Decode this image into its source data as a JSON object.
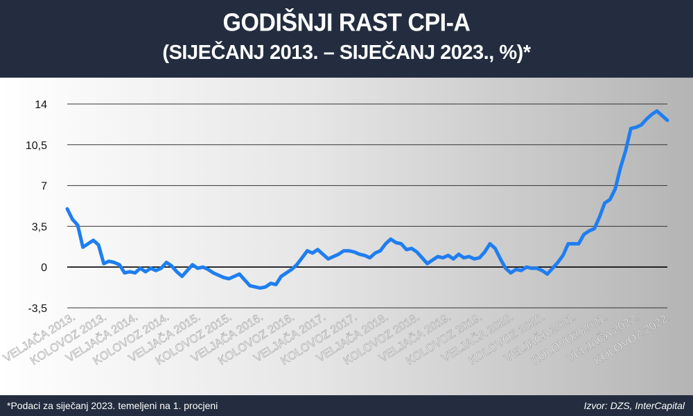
{
  "header": {
    "title": "GODIŠNJI RAST CPI-A",
    "subtitle": "(SIJEČANJ 2013. – SIJEČANJ 2023., %)*"
  },
  "footer": {
    "note": "*Podaci za siječanj 2023. temeljeni na 1. procjeni",
    "source": "Izvor: DZS, InterCapital"
  },
  "colors": {
    "line": "#1f7ef0",
    "header_bg": "#232d3f",
    "gridline": "#333333"
  },
  "chart_data": {
    "type": "line",
    "title": "GODIŠNJI RAST CPI-A",
    "subtitle": "(SIJEČANJ 2013. – SIJEČANJ 2023., %)*",
    "ylim": [
      -3.5,
      14
    ],
    "yticks": [
      -3.5,
      0,
      3.5,
      7,
      10.5,
      14
    ],
    "ytick_labels": [
      "-3,5",
      "0",
      "3,5",
      "7",
      "10,5",
      "14"
    ],
    "x_start": "2013-01",
    "xtick_labels": [
      "VELJAČA 2013.",
      "KOLOVOZ 2013.",
      "VELJAČA 2014.",
      "KOLOVOZ 2014.",
      "VELJAČA 2015.",
      "KOLOVOZ 2015.",
      "VELJAČA 2016.",
      "KOLOVOZ 2016.",
      "VELJAČA 2017.",
      "KOLOVOZ 2017.",
      "VELJAČA 2018.",
      "KOLOVOZ 2018.",
      "VELJAČA 2019.",
      "KOLOVOZ 2019.",
      "VELJAČA 2020.",
      "KOLOVOZ 2020.",
      "VELJAČA 2021.",
      "KOLOVOZ 2021.",
      "VELJAČA 2022.",
      "KOLOVOZ 2022."
    ],
    "legend": "none",
    "grid": true,
    "series": [
      {
        "values": [
          5.0,
          4.1,
          3.6,
          1.7,
          2.0,
          2.3,
          1.9,
          0.3,
          0.5,
          0.4,
          0.2,
          -0.5,
          -0.4,
          -0.5,
          -0.1,
          -0.4,
          -0.1,
          -0.3,
          -0.1,
          0.4,
          0.1,
          -0.4,
          -0.8,
          -0.3,
          0.2,
          -0.1,
          0.0,
          -0.2,
          -0.5,
          -0.7,
          -0.9,
          -1.0,
          -0.8,
          -0.6,
          -1.1,
          -1.6,
          -1.7,
          -1.8,
          -1.7,
          -1.4,
          -1.5,
          -0.8,
          -0.5,
          -0.2,
          0.2,
          0.8,
          1.4,
          1.2,
          1.5,
          1.1,
          0.7,
          0.9,
          1.1,
          1.4,
          1.4,
          1.3,
          1.1,
          1.0,
          0.8,
          1.2,
          1.4,
          2.0,
          2.4,
          2.1,
          2.0,
          1.5,
          1.6,
          1.3,
          0.8,
          0.3,
          0.6,
          0.9,
          0.8,
          1.0,
          0.7,
          1.1,
          0.8,
          0.9,
          0.7,
          0.8,
          1.3,
          2.0,
          1.6,
          0.7,
          -0.1,
          -0.5,
          -0.2,
          -0.3,
          0.0,
          -0.1,
          -0.1,
          -0.3,
          -0.6,
          -0.1,
          0.4,
          1.0,
          2.0,
          2.0,
          2.0,
          2.8,
          3.1,
          3.3,
          4.3,
          5.5,
          5.8,
          6.7,
          8.5,
          10.0,
          11.9,
          12.0,
          12.2,
          12.7,
          13.1,
          13.4,
          13.0,
          12.6
        ]
      }
    ]
  }
}
